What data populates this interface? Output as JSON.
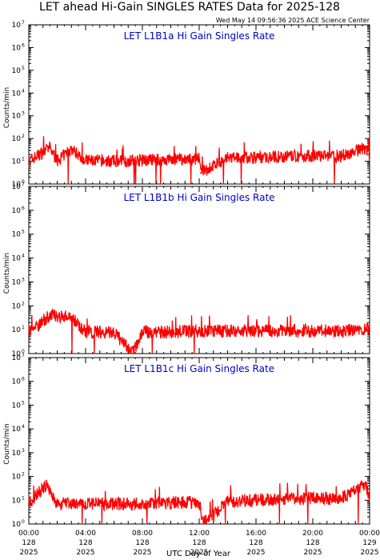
{
  "header": {
    "title": "LET ahead Hi-Gain SINGLES RATES Data for 2025-128",
    "timestamp": "Wed May 14 09:56:36 2025 ACE Science Center"
  },
  "axes": {
    "ylabel": "Counts/min",
    "xlabel": "UTC Day of Year",
    "y_ticks": [
      0,
      1,
      2,
      3,
      4,
      5,
      6,
      7
    ],
    "x_ticks": [
      {
        "time": "00:00",
        "doy": "128",
        "year": "2025"
      },
      {
        "time": "04:00",
        "doy": "128",
        "year": "2025"
      },
      {
        "time": "08:00",
        "doy": "128",
        "year": "2025"
      },
      {
        "time": "12:00",
        "doy": "128",
        "year": "2025"
      },
      {
        "time": "16:00",
        "doy": "128",
        "year": "2025"
      },
      {
        "time": "20:00",
        "doy": "128",
        "year": "2025"
      },
      {
        "time": "00:00",
        "doy": "129",
        "year": "2025"
      }
    ]
  },
  "colors": {
    "series": "#ff0000",
    "panel_title": "#0000cc",
    "axis": "#000000"
  },
  "chart_data": [
    {
      "type": "line",
      "title": "LET L1B1a Hi Gain Singles Rate",
      "ylabel": "Counts/min",
      "yscale": "log",
      "ylim": [
        1,
        10000000
      ],
      "xlim_hours": [
        0,
        24
      ],
      "x_unit": "UTC hour of day 128",
      "series": [
        {
          "values": [
            {
              "x": 0,
              "y": 10
            },
            {
              "x": 1.5,
              "y": 40
            },
            {
              "x": 2,
              "y": 10
            },
            {
              "x": 3,
              "y": 35
            },
            {
              "x": 4,
              "y": 11
            },
            {
              "x": 6,
              "y": 10
            },
            {
              "x": 8,
              "y": 11
            },
            {
              "x": 10,
              "y": 12
            },
            {
              "x": 12,
              "y": 13
            },
            {
              "x": 12.1,
              "y": 3
            },
            {
              "x": 14,
              "y": 14
            },
            {
              "x": 16,
              "y": 15
            },
            {
              "x": 18,
              "y": 16
            },
            {
              "x": 20,
              "y": 17
            },
            {
              "x": 22,
              "y": 17
            },
            {
              "x": 23.7,
              "y": 40
            },
            {
              "x": 24,
              "y": 18
            }
          ]
        }
      ]
    },
    {
      "type": "line",
      "title": "LET L1B1b Hi Gain Singles Rate",
      "ylabel": "Counts/min",
      "yscale": "log",
      "ylim": [
        1,
        10000000
      ],
      "xlim_hours": [
        0,
        24
      ],
      "x_unit": "UTC hour of day 128",
      "series": [
        {
          "values": [
            {
              "x": 0,
              "y": 8
            },
            {
              "x": 1.5,
              "y": 40
            },
            {
              "x": 3,
              "y": 35
            },
            {
              "x": 4,
              "y": 8
            },
            {
              "x": 6,
              "y": 8
            },
            {
              "x": 7.3,
              "y": 1
            },
            {
              "x": 8,
              "y": 8
            },
            {
              "x": 10,
              "y": 8
            },
            {
              "x": 12,
              "y": 9
            },
            {
              "x": 14,
              "y": 9
            },
            {
              "x": 16,
              "y": 9
            },
            {
              "x": 18,
              "y": 9
            },
            {
              "x": 20,
              "y": 9
            },
            {
              "x": 22,
              "y": 9
            },
            {
              "x": 24,
              "y": 10
            }
          ]
        }
      ]
    },
    {
      "type": "line",
      "title": "LET L1B1c Hi Gain Singles Rate",
      "ylabel": "Counts/min",
      "yscale": "log",
      "ylim": [
        1,
        10000000
      ],
      "xlim_hours": [
        0,
        24
      ],
      "x_unit": "UTC hour of day 128",
      "series": [
        {
          "values": [
            {
              "x": 0,
              "y": 7
            },
            {
              "x": 1.2,
              "y": 45
            },
            {
              "x": 2,
              "y": 7
            },
            {
              "x": 4,
              "y": 7
            },
            {
              "x": 6,
              "y": 7
            },
            {
              "x": 8,
              "y": 7
            },
            {
              "x": 10,
              "y": 8
            },
            {
              "x": 12,
              "y": 8
            },
            {
              "x": 12.3,
              "y": 1
            },
            {
              "x": 14,
              "y": 9
            },
            {
              "x": 16,
              "y": 10
            },
            {
              "x": 18,
              "y": 11
            },
            {
              "x": 20,
              "y": 12
            },
            {
              "x": 22,
              "y": 12
            },
            {
              "x": 23.7,
              "y": 50
            },
            {
              "x": 24,
              "y": 13
            }
          ]
        }
      ]
    }
  ]
}
